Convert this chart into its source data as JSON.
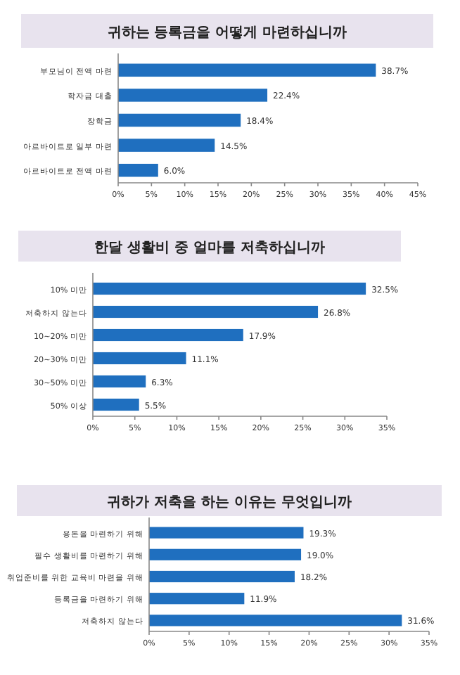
{
  "chart_data": [
    {
      "type": "bar",
      "orientation": "horizontal",
      "title": "귀하는 등록금을 어떻게 마련하십니까",
      "categories": [
        "부모님이 전액 마련",
        "학자금 대출",
        "장학금",
        "아르바이트로 일부 마련",
        "아르바이트로 전액 마련"
      ],
      "values": [
        38.7,
        22.4,
        18.4,
        14.5,
        6.0
      ],
      "value_labels": [
        "38.7%",
        "22.4%",
        "18.4%",
        "14.5%",
        "6.0%"
      ],
      "color": "#1f6fbf",
      "xlim": [
        0,
        45
      ],
      "xticks": [
        {
          "value": 0,
          "label": "0%"
        },
        {
          "value": 5,
          "label": "5%"
        },
        {
          "value": 10,
          "label": "10%"
        },
        {
          "value": 15,
          "label": "15%"
        },
        {
          "value": 20,
          "label": "20%"
        },
        {
          "value": 25,
          "label": "25%"
        },
        {
          "value": 30,
          "label": "30%"
        },
        {
          "value": 35,
          "label": "35%"
        },
        {
          "value": 40,
          "label": "40%"
        },
        {
          "value": 45,
          "label": "45%"
        }
      ],
      "grid": false
    },
    {
      "type": "bar",
      "orientation": "horizontal",
      "title": "한달 생활비 중 얼마를 저축하십니까",
      "categories": [
        "10% 미만",
        "저축하지 않는다",
        "10~20% 미만",
        "20~30% 미만",
        "30~50% 미만",
        "50% 이상"
      ],
      "values": [
        32.5,
        26.8,
        17.9,
        11.1,
        6.3,
        5.5
      ],
      "value_labels": [
        "32.5%",
        "26.8%",
        "17.9%",
        "11.1%",
        "6.3%",
        "5.5%"
      ],
      "color": "#1f6fbf",
      "xlim": [
        0,
        35
      ],
      "xticks": [
        {
          "value": 0,
          "label": "0%"
        },
        {
          "value": 5,
          "label": "5%"
        },
        {
          "value": 10,
          "label": "10%"
        },
        {
          "value": 15,
          "label": "15%"
        },
        {
          "value": 20,
          "label": "20%"
        },
        {
          "value": 25,
          "label": "25%"
        },
        {
          "value": 30,
          "label": "30%"
        },
        {
          "value": 35,
          "label": "35%"
        }
      ],
      "grid": false
    },
    {
      "type": "bar",
      "orientation": "horizontal",
      "title": "귀하가 저축을 하는 이유는 무엇입니까",
      "categories": [
        "용돈을 마련하기 위해",
        "필수 생활비를 마련하기 위해",
        "취업준비를 위한 교육비 마련을 위해",
        "등록금을 마련하기 위해",
        "저축하지 않는다"
      ],
      "values": [
        19.3,
        19.0,
        18.2,
        11.9,
        31.6
      ],
      "value_labels": [
        "19.3%",
        "19.0%",
        "18.2%",
        "11.9%",
        "31.6%"
      ],
      "color": "#1f6fbf",
      "xlim": [
        0,
        35
      ],
      "xticks": [
        {
          "value": 0,
          "label": "0%"
        },
        {
          "value": 5,
          "label": "5%"
        },
        {
          "value": 10,
          "label": "10%"
        },
        {
          "value": 15,
          "label": "15%"
        },
        {
          "value": 20,
          "label": "20%"
        },
        {
          "value": 25,
          "label": "25%"
        },
        {
          "value": 30,
          "label": "30%"
        },
        {
          "value": 35,
          "label": "35%"
        }
      ],
      "grid": false
    }
  ]
}
